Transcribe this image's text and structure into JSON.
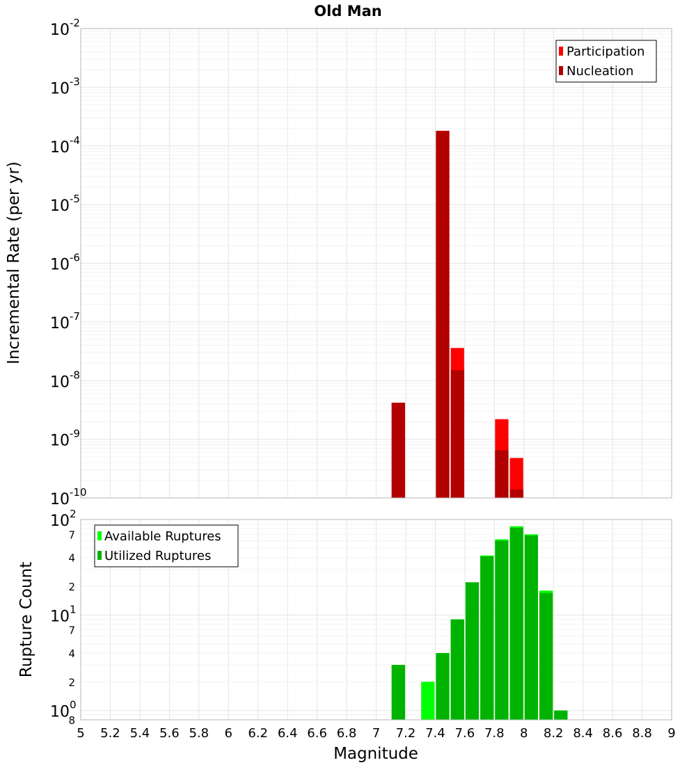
{
  "title": "Old Man",
  "xlabel": "Magnitude",
  "x_ticks": [
    "5",
    "5.2",
    "5.4",
    "5.6",
    "5.8",
    "6",
    "6.2",
    "6.4",
    "6.6",
    "6.8",
    "7",
    "7.2",
    "7.4",
    "7.6",
    "7.8",
    "8",
    "8.2",
    "8.4",
    "8.6",
    "8.8",
    "9"
  ],
  "chart_data": [
    {
      "type": "bar",
      "ylabel": "Incremental Rate (per yr)",
      "y_scale": "log",
      "ylim": [
        1e-10,
        0.01
      ],
      "xlim": [
        5,
        9
      ],
      "bar_width": 0.1,
      "grid": true,
      "legend_position": "top-right",
      "y_tick_labels": [
        {
          "base": "10",
          "exp": "-2",
          "value": 0.01
        },
        {
          "base": "10",
          "exp": "-3",
          "value": 0.001
        },
        {
          "base": "10",
          "exp": "-4",
          "value": 0.0001
        },
        {
          "base": "10",
          "exp": "-5",
          "value": 1e-05
        },
        {
          "base": "10",
          "exp": "-6",
          "value": 1e-06
        },
        {
          "base": "10",
          "exp": "-7",
          "value": 1e-07
        },
        {
          "base": "10",
          "exp": "-8",
          "value": 1e-08
        },
        {
          "base": "10",
          "exp": "-9",
          "value": 1e-09
        },
        {
          "base": "10",
          "exp": "-10",
          "value": 1e-10
        }
      ],
      "series": [
        {
          "name": "Participation",
          "color": "#ff0000",
          "x": [
            7.15,
            7.45,
            7.55,
            7.85,
            7.95
          ],
          "values": [
            4.2e-09,
            0.00018,
            3.6e-08,
            2.2e-09,
            4.8e-10
          ]
        },
        {
          "name": "Nucleation",
          "color": "#b30000",
          "x": [
            7.15,
            7.45,
            7.55,
            7.85,
            7.95
          ],
          "values": [
            4.2e-09,
            0.00018,
            1.5e-08,
            6.5e-10,
            1.4e-10
          ]
        }
      ]
    },
    {
      "type": "bar",
      "ylabel": "Rupture Count",
      "y_scale": "log",
      "ylim": [
        0.8,
        100
      ],
      "xlim": [
        5,
        9
      ],
      "bar_width": 0.1,
      "grid": true,
      "legend_position": "top-left",
      "y_tick_labels": [
        {
          "base": "10",
          "exp": "2",
          "value": 100
        },
        {
          "base": "",
          "exp": "",
          "label": "7",
          "value": 70
        },
        {
          "base": "",
          "exp": "",
          "label": "4",
          "value": 40
        },
        {
          "base": "",
          "exp": "",
          "label": "2",
          "value": 20
        },
        {
          "base": "10",
          "exp": "1",
          "value": 10
        },
        {
          "base": "",
          "exp": "",
          "label": "7",
          "value": 7
        },
        {
          "base": "",
          "exp": "",
          "label": "4",
          "value": 4
        },
        {
          "base": "",
          "exp": "",
          "label": "2",
          "value": 2
        },
        {
          "base": "10",
          "exp": "0",
          "value": 1
        },
        {
          "base": "",
          "exp": "",
          "label": "8",
          "value": 0.8
        }
      ],
      "series": [
        {
          "name": "Available Ruptures",
          "color": "#00ff00",
          "x": [
            7.15,
            7.35,
            7.45,
            7.55,
            7.65,
            7.75,
            7.85,
            7.95,
            8.05,
            8.15,
            8.25
          ],
          "values": [
            3,
            2,
            4,
            9,
            22,
            42,
            62,
            85,
            70,
            18,
            1
          ]
        },
        {
          "name": "Utilized Ruptures",
          "color": "#00b300",
          "x": [
            7.15,
            7.35,
            7.45,
            7.55,
            7.65,
            7.75,
            7.85,
            7.95,
            8.05,
            8.15,
            8.25
          ],
          "values": [
            3,
            0.8,
            4,
            9,
            22,
            41,
            60,
            82,
            68,
            17,
            1
          ]
        }
      ]
    }
  ]
}
